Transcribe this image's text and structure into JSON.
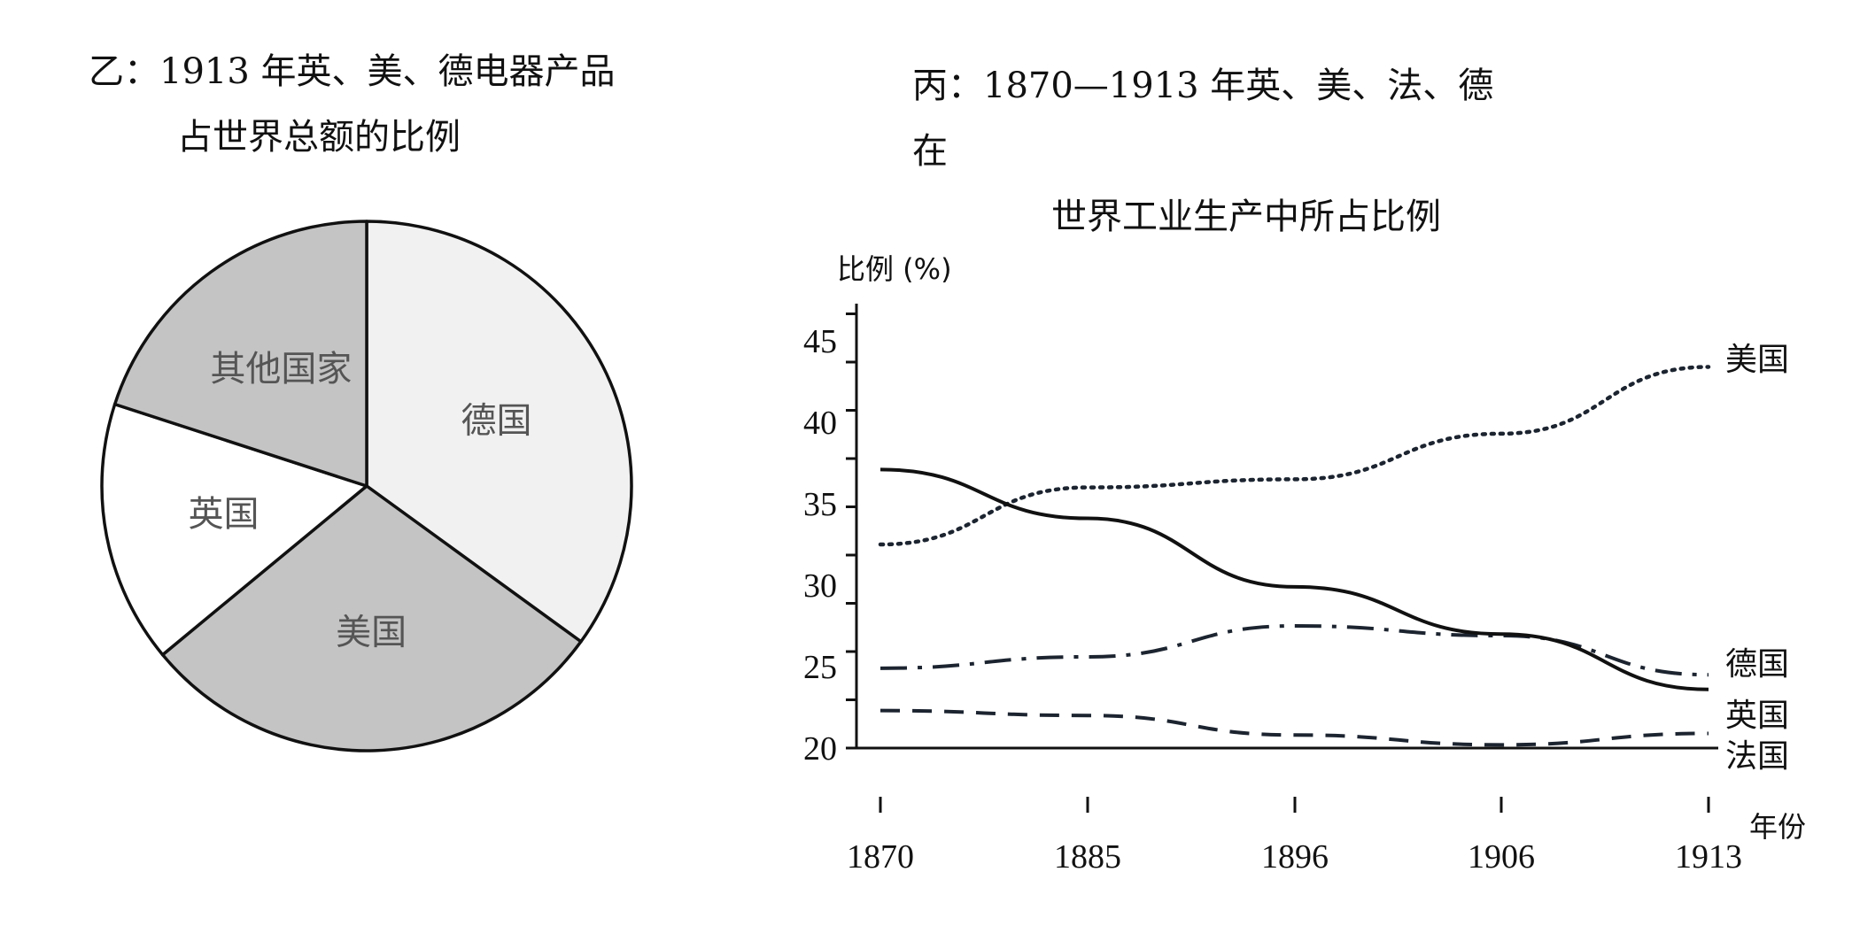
{
  "chart_data": [
    {
      "type": "pie",
      "title_line1": "乙：1913 年英、美、德电器产品",
      "title_line2": "占世界总额的比例",
      "slices": [
        {
          "label": "德国",
          "value": 35,
          "color": "#f1f1f1"
        },
        {
          "label": "美国",
          "value": 29,
          "color": "#c4c4c4"
        },
        {
          "label": "英国",
          "value": 16,
          "color": "#ffffff"
        },
        {
          "label": "其他国家",
          "value": 20,
          "color": "#c4c4c4"
        }
      ],
      "start": "12 o'clock, clockwise"
    },
    {
      "type": "line",
      "title_line1": "丙：1870—1913 年英、美、法、德",
      "title_line2": "在",
      "title_line3": "世界工业生产中所占比例",
      "ylabel": "比例 (%)",
      "xlabel": "年份",
      "x": [
        "1870",
        "1885",
        "1896",
        "1906",
        "1913"
      ],
      "yticks": [
        "20",
        "25",
        "30",
        "35",
        "40",
        "45"
      ],
      "ylim": [
        20,
        45
      ],
      "series": [
        {
          "name": "美国",
          "style": "dotted",
          "values": [
            32.5,
            36.0,
            36.5,
            39.3,
            43.4
          ]
        },
        {
          "name": "德国",
          "style": "dashdot",
          "values": [
            24.9,
            25.6,
            27.5,
            26.9,
            24.5
          ]
        },
        {
          "name": "英国",
          "style": "solid",
          "values": [
            37.1,
            34.1,
            29.9,
            27.0,
            23.6
          ]
        },
        {
          "name": "法国",
          "style": "dashed",
          "values": [
            22.3,
            22.0,
            20.8,
            20.2,
            20.9
          ]
        }
      ]
    }
  ]
}
